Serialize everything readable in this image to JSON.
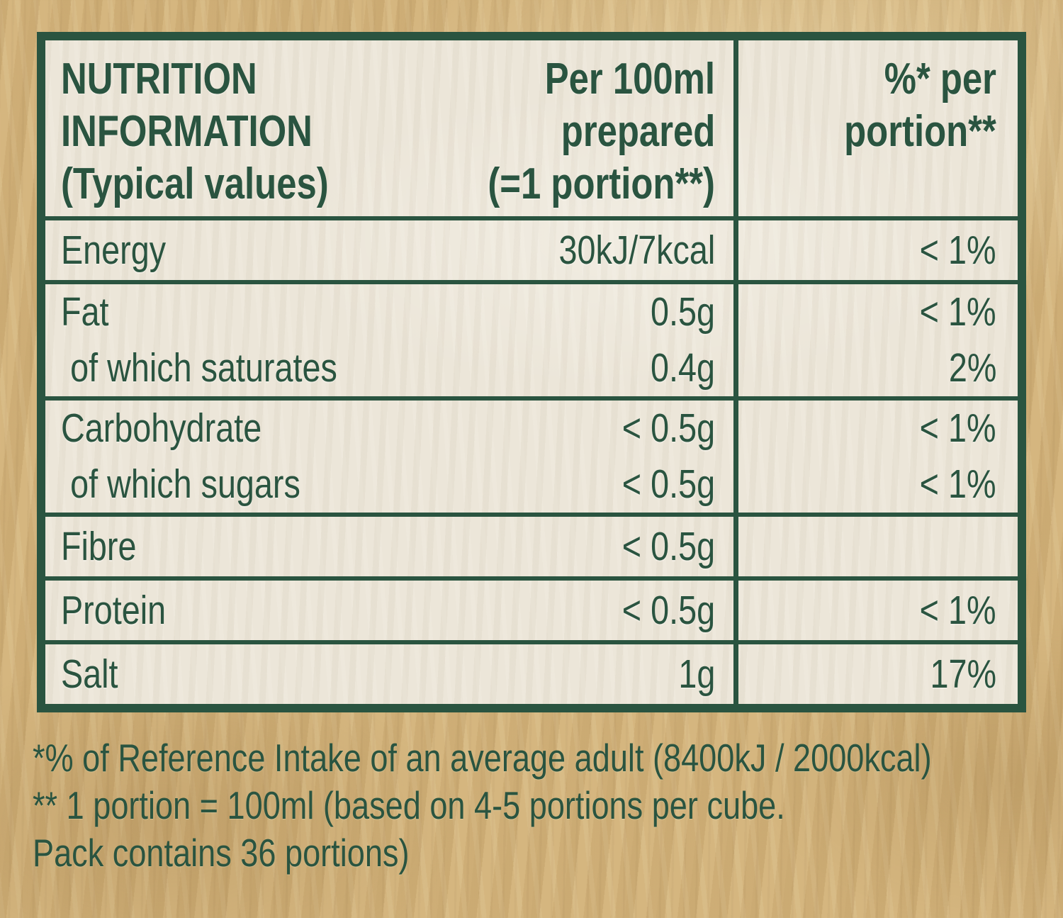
{
  "label": {
    "header": {
      "col1_lines": [
        "NUTRITION",
        "INFORMATION",
        "(Typical values)"
      ],
      "col2_lines": [
        "Per 100ml",
        "prepared",
        "(=1 portion**)"
      ],
      "col3_lines": [
        "%* per",
        "portion**"
      ]
    },
    "rows": [
      {
        "lines": [
          {
            "label": "Energy",
            "value": "30kJ/7kcal",
            "pct": "< 1%"
          }
        ]
      },
      {
        "lines": [
          {
            "label": "Fat",
            "value": "0.5g",
            "pct": "< 1%"
          },
          {
            "label": "of which saturates",
            "value": "0.4g",
            "pct": "2%"
          }
        ]
      },
      {
        "lines": [
          {
            "label": "Carbohydrate",
            "value": "< 0.5g",
            "pct": "< 1%"
          },
          {
            "label": "of which sugars",
            "value": "< 0.5g",
            "pct": "< 1%"
          }
        ]
      },
      {
        "lines": [
          {
            "label": "Fibre",
            "value": "< 0.5g",
            "pct": ""
          }
        ]
      },
      {
        "lines": [
          {
            "label": "Protein",
            "value": "< 0.5g",
            "pct": "< 1%"
          }
        ]
      },
      {
        "lines": [
          {
            "label": "Salt",
            "value": "1g",
            "pct": "17%"
          }
        ]
      }
    ],
    "footnotes": [
      "*% of Reference Intake of an average adult (8400kJ / 2000kcal)",
      "** 1 portion = 100ml (based on 4-5 portions per cube.",
      "Pack contains 36 portions)"
    ],
    "colors": {
      "green": "#2a5440",
      "cell_bg": "#ece6d9",
      "paper_bg": "#d1b179"
    }
  }
}
